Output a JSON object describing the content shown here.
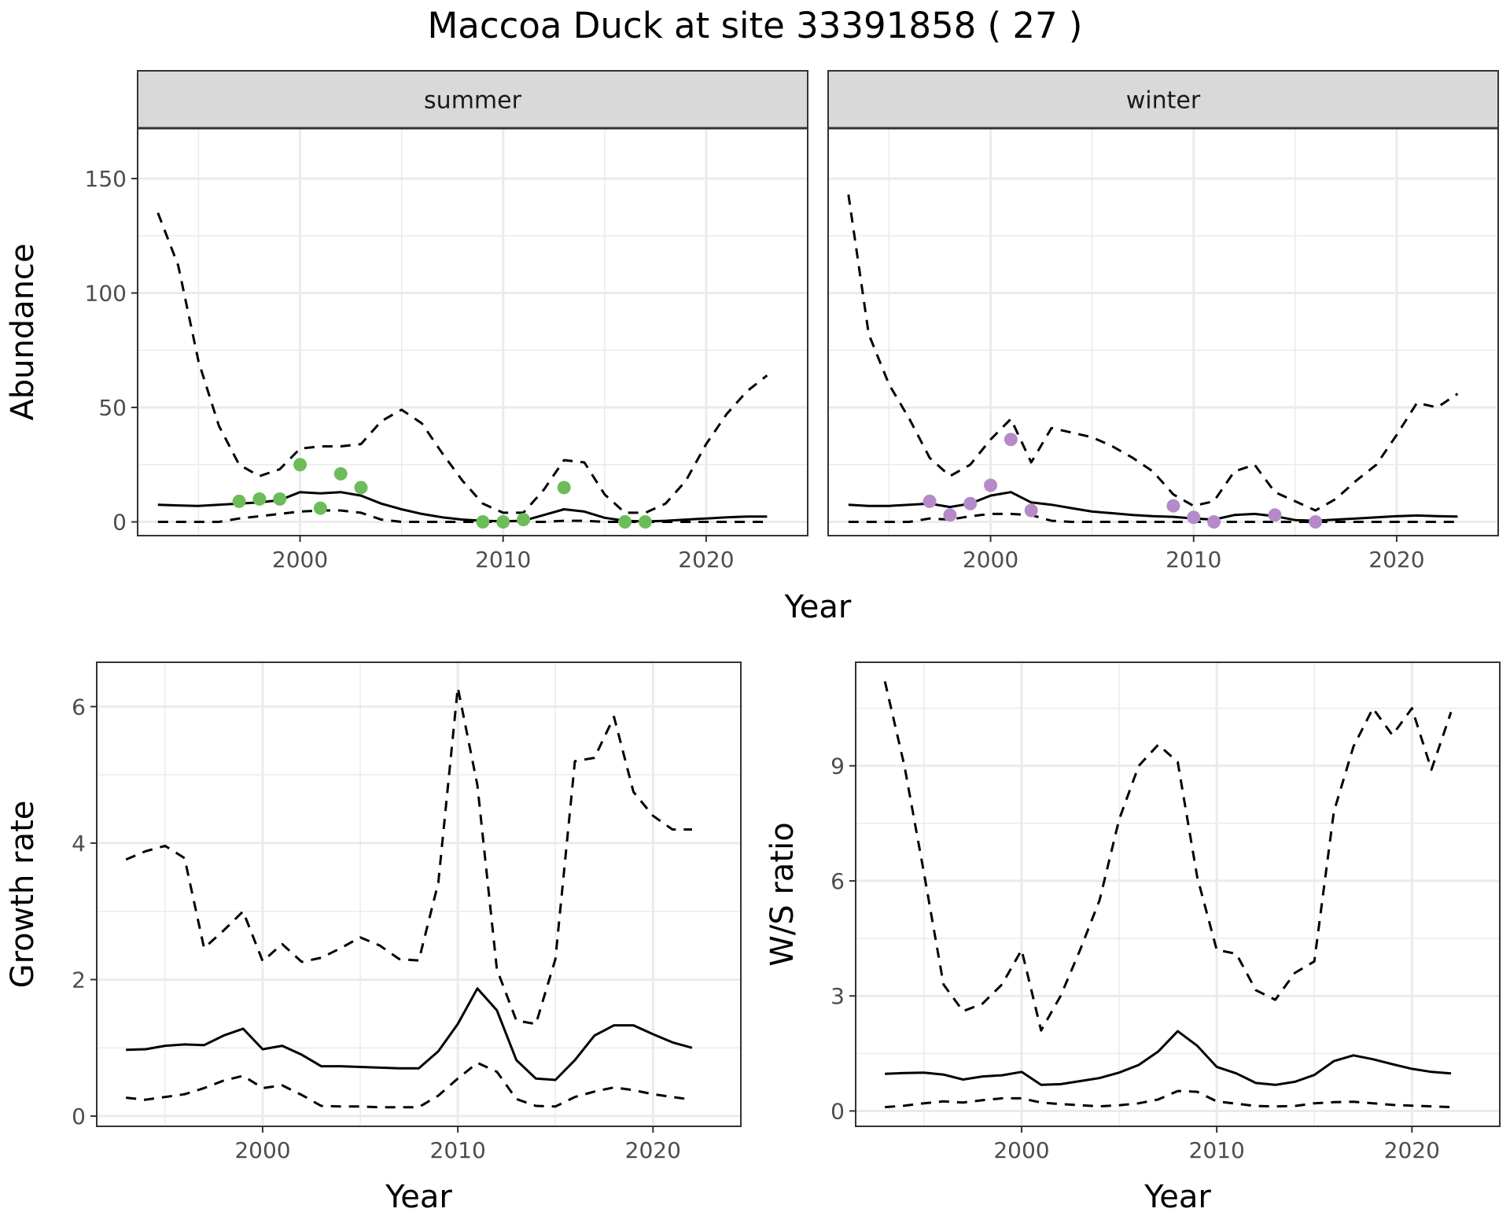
{
  "title": "Maccoa Duck at site 33391858 ( 27 )",
  "colors": {
    "summer_points": "#6cbd5a",
    "winter_points": "#b48bc8",
    "line": "#000000",
    "grid": "#ebebeb",
    "strip": "#d9d9d9"
  },
  "chart_data": [
    {
      "id": "summer",
      "type": "line",
      "facet_label": "summer",
      "xlabel": "Year",
      "ylabel": "Abundance",
      "xlim": [
        1992,
        2025
      ],
      "ylim": [
        -6,
        172
      ],
      "x_ticks": [
        2000,
        2010,
        2020
      ],
      "y_ticks": [
        0,
        50,
        100,
        150
      ],
      "grid": true,
      "series": [
        {
          "style": "solid",
          "x": [
            1993,
            1994,
            1995,
            1996,
            1997,
            1998,
            1999,
            2000,
            2001,
            2002,
            2003,
            2004,
            2005,
            2006,
            2007,
            2008,
            2009,
            2010,
            2011,
            2012,
            2013,
            2014,
            2015,
            2016,
            2017,
            2018,
            2019,
            2020,
            2021,
            2022,
            2023
          ],
          "y": [
            7.5,
            7.2,
            7,
            7.5,
            8,
            8.5,
            9.5,
            13,
            12.5,
            13,
            11.5,
            8,
            5.5,
            3.5,
            2,
            1,
            0.5,
            0.3,
            0.5,
            3,
            5.5,
            4.5,
            1.8,
            0.5,
            0.2,
            0.5,
            1,
            1.5,
            2,
            2.3,
            2.3
          ]
        },
        {
          "style": "dashed",
          "x": [
            1993,
            1994,
            1995,
            1996,
            1997,
            1998,
            1999,
            2000,
            2001,
            2002,
            2003,
            2004,
            2005,
            2006,
            2007,
            2008,
            2009,
            2010,
            2011,
            2012,
            2013,
            2014,
            2015,
            2016,
            2017,
            2018,
            2019,
            2020,
            2021,
            2022,
            2023
          ],
          "y": [
            135,
            112,
            70,
            42,
            25,
            20,
            23,
            32,
            33,
            33,
            34,
            44,
            49,
            43,
            30,
            18,
            8,
            4,
            4,
            14,
            27,
            26,
            12,
            4,
            4,
            8,
            18,
            34,
            47,
            57,
            64
          ]
        },
        {
          "style": "dashed",
          "x": [
            1993,
            1994,
            1995,
            1996,
            1997,
            1998,
            1999,
            2000,
            2001,
            2002,
            2003,
            2004,
            2005,
            2006,
            2007,
            2008,
            2009,
            2010,
            2011,
            2012,
            2013,
            2014,
            2015,
            2016,
            2017,
            2018,
            2019,
            2020,
            2021,
            2022,
            2023
          ],
          "y": [
            0,
            0,
            0,
            0,
            1.5,
            2.5,
            3.5,
            4.5,
            5,
            5,
            4,
            1,
            0,
            0,
            0,
            0,
            0,
            0,
            0,
            0,
            0.5,
            0.5,
            0,
            0,
            0,
            0,
            0,
            0,
            0,
            0,
            0
          ]
        },
        {
          "style": "points",
          "x": [
            1997,
            1998,
            1999,
            2000,
            2001,
            2002,
            2003,
            2009,
            2010,
            2011,
            2013,
            2016,
            2017
          ],
          "y": [
            9,
            10,
            10,
            25,
            6,
            21,
            15,
            0,
            0,
            1,
            15,
            0,
            0
          ]
        }
      ]
    },
    {
      "id": "winter",
      "type": "line",
      "facet_label": "winter",
      "xlabel": "Year",
      "ylabel": "",
      "xlim": [
        1992,
        2025
      ],
      "ylim": [
        -6,
        172
      ],
      "x_ticks": [
        2000,
        2010,
        2020
      ],
      "y_ticks": [
        0,
        50,
        100,
        150
      ],
      "grid": true,
      "series": [
        {
          "style": "solid",
          "x": [
            1993,
            1994,
            1995,
            1996,
            1997,
            1998,
            1999,
            2000,
            2001,
            2002,
            2003,
            2004,
            2005,
            2006,
            2007,
            2008,
            2009,
            2010,
            2011,
            2012,
            2013,
            2014,
            2015,
            2016,
            2017,
            2018,
            2019,
            2020,
            2021,
            2022,
            2023
          ],
          "y": [
            7.5,
            7,
            7,
            7.5,
            8,
            6.5,
            8,
            11.5,
            13,
            8.5,
            7.5,
            6,
            4.5,
            3.8,
            3,
            2.5,
            2.2,
            1.5,
            1,
            3,
            3.5,
            2.5,
            0.8,
            0.5,
            1,
            1.5,
            2,
            2.5,
            2.8,
            2.5,
            2.3
          ]
        },
        {
          "style": "dashed",
          "x": [
            1993,
            1994,
            1995,
            1996,
            1997,
            1998,
            1999,
            2000,
            2001,
            2002,
            2003,
            2004,
            2005,
            2006,
            2007,
            2008,
            2009,
            2010,
            2011,
            2012,
            2013,
            2014,
            2015,
            2016,
            2017,
            2018,
            2019,
            2020,
            2021,
            2022,
            2023
          ],
          "y": [
            143,
            82,
            60,
            45,
            28,
            20,
            25,
            36,
            45,
            26,
            41,
            39,
            37,
            33,
            28,
            22,
            12,
            7,
            9,
            22,
            25,
            13,
            9,
            5,
            10,
            18,
            25,
            38,
            52,
            50,
            56
          ]
        },
        {
          "style": "dashed",
          "x": [
            1993,
            1994,
            1995,
            1996,
            1997,
            1998,
            1999,
            2000,
            2001,
            2002,
            2003,
            2004,
            2005,
            2006,
            2007,
            2008,
            2009,
            2010,
            2011,
            2012,
            2013,
            2014,
            2015,
            2016,
            2017,
            2018,
            2019,
            2020,
            2021,
            2022,
            2023
          ],
          "y": [
            0,
            0,
            0,
            0,
            1.5,
            1,
            2.5,
            3.5,
            3.5,
            3,
            0.5,
            0,
            0,
            0,
            0,
            0,
            0,
            0,
            0,
            0,
            0,
            0,
            0,
            0,
            0,
            0,
            0,
            0,
            0,
            0,
            0
          ]
        },
        {
          "style": "points",
          "x": [
            1997,
            1998,
            1999,
            2000,
            2001,
            2002,
            2009,
            2010,
            2011,
            2014,
            2016
          ],
          "y": [
            9,
            3,
            8,
            16,
            36,
            5,
            7,
            2,
            0,
            3,
            0
          ]
        }
      ]
    },
    {
      "id": "growth",
      "type": "line",
      "facet_label": "",
      "xlabel": "Year",
      "ylabel": "Growth rate",
      "xlim": [
        1991.5,
        2024.5
      ],
      "ylim": [
        -0.15,
        6.65
      ],
      "x_ticks": [
        2000,
        2010,
        2020
      ],
      "y_ticks": [
        0,
        2,
        4,
        6
      ],
      "grid": true,
      "series": [
        {
          "style": "solid",
          "x": [
            1993,
            1994,
            1995,
            1996,
            1997,
            1998,
            1999,
            2000,
            2001,
            2002,
            2003,
            2004,
            2005,
            2006,
            2007,
            2008,
            2009,
            2010,
            2011,
            2012,
            2013,
            2014,
            2015,
            2016,
            2017,
            2018,
            2019,
            2020,
            2021,
            2022
          ],
          "y": [
            0.97,
            0.98,
            1.03,
            1.05,
            1.04,
            1.18,
            1.28,
            0.98,
            1.03,
            0.9,
            0.73,
            0.73,
            0.72,
            0.71,
            0.7,
            0.7,
            0.95,
            1.35,
            1.87,
            1.55,
            0.82,
            0.55,
            0.53,
            0.82,
            1.18,
            1.33,
            1.33,
            1.2,
            1.08,
            1.0
          ]
        },
        {
          "style": "dashed",
          "x": [
            1993,
            1994,
            1995,
            1996,
            1997,
            1998,
            1999,
            2000,
            2001,
            2002,
            2003,
            2004,
            2005,
            2006,
            2007,
            2008,
            2009,
            2010,
            2011,
            2012,
            2013,
            2014,
            2015,
            2016,
            2017,
            2018,
            2019,
            2020,
            2021,
            2022
          ],
          "y": [
            3.76,
            3.88,
            3.96,
            3.78,
            2.46,
            2.72,
            3.0,
            2.27,
            2.52,
            2.26,
            2.32,
            2.46,
            2.62,
            2.5,
            2.3,
            2.28,
            3.42,
            6.28,
            4.85,
            2.15,
            1.4,
            1.35,
            2.3,
            5.2,
            5.25,
            5.85,
            4.75,
            4.4,
            4.2,
            4.2
          ]
        },
        {
          "style": "dashed",
          "x": [
            1993,
            1994,
            1995,
            1996,
            1997,
            1998,
            1999,
            2000,
            2001,
            2002,
            2003,
            2004,
            2005,
            2006,
            2007,
            2008,
            2009,
            2010,
            2011,
            2012,
            2013,
            2014,
            2015,
            2016,
            2017,
            2018,
            2019,
            2020,
            2021,
            2022
          ],
          "y": [
            0.27,
            0.24,
            0.28,
            0.32,
            0.41,
            0.52,
            0.59,
            0.41,
            0.45,
            0.31,
            0.15,
            0.14,
            0.14,
            0.13,
            0.13,
            0.13,
            0.3,
            0.55,
            0.78,
            0.65,
            0.25,
            0.15,
            0.14,
            0.28,
            0.36,
            0.42,
            0.38,
            0.32,
            0.28,
            0.24
          ]
        }
      ]
    },
    {
      "id": "ratio",
      "type": "line",
      "facet_label": "",
      "xlabel": "Year",
      "ylabel": "W/S ratio",
      "xlim": [
        1991.5,
        2024.5
      ],
      "ylim": [
        -0.4,
        11.7
      ],
      "x_ticks": [
        2000,
        2010,
        2020
      ],
      "y_ticks": [
        0,
        3,
        6,
        9
      ],
      "grid": true,
      "series": [
        {
          "style": "solid",
          "x": [
            1993,
            1994,
            1995,
            1996,
            1997,
            1998,
            1999,
            2000,
            2001,
            2002,
            2003,
            2004,
            2005,
            2006,
            2007,
            2008,
            2009,
            2010,
            2011,
            2012,
            2013,
            2014,
            2015,
            2016,
            2017,
            2018,
            2019,
            2020,
            2021,
            2022
          ],
          "y": [
            0.97,
            0.99,
            1.0,
            0.95,
            0.82,
            0.9,
            0.93,
            1.02,
            0.68,
            0.7,
            0.78,
            0.86,
            1.0,
            1.2,
            1.55,
            2.08,
            1.7,
            1.15,
            0.98,
            0.73,
            0.68,
            0.76,
            0.94,
            1.3,
            1.45,
            1.35,
            1.22,
            1.1,
            1.02,
            0.98
          ]
        },
        {
          "style": "dashed",
          "x": [
            1993,
            1994,
            1995,
            1996,
            1997,
            1998,
            1999,
            2000,
            2001,
            2002,
            2003,
            2004,
            2005,
            2006,
            2007,
            2008,
            2009,
            2010,
            2011,
            2012,
            2013,
            2014,
            2015,
            2016,
            2017,
            2018,
            2019,
            2020,
            2021,
            2022
          ],
          "y": [
            11.2,
            9.0,
            6.2,
            3.3,
            2.6,
            2.8,
            3.3,
            4.2,
            2.1,
            3.0,
            4.2,
            5.5,
            7.6,
            9.0,
            9.55,
            9.1,
            6.1,
            4.2,
            4.1,
            3.15,
            2.9,
            3.6,
            3.9,
            7.8,
            9.5,
            10.5,
            9.8,
            10.5,
            8.9,
            10.4
          ]
        },
        {
          "style": "dashed",
          "x": [
            1993,
            1994,
            1995,
            1996,
            1997,
            1998,
            1999,
            2000,
            2001,
            2002,
            2003,
            2004,
            2005,
            2006,
            2007,
            2008,
            2009,
            2010,
            2011,
            2012,
            2013,
            2014,
            2015,
            2016,
            2017,
            2018,
            2019,
            2020,
            2021,
            2022
          ],
          "y": [
            0.1,
            0.14,
            0.2,
            0.25,
            0.22,
            0.28,
            0.33,
            0.33,
            0.22,
            0.18,
            0.15,
            0.12,
            0.15,
            0.2,
            0.3,
            0.52,
            0.5,
            0.25,
            0.19,
            0.13,
            0.12,
            0.13,
            0.2,
            0.23,
            0.24,
            0.2,
            0.16,
            0.14,
            0.12,
            0.1
          ]
        }
      ]
    }
  ],
  "shared_xlabel_top": "Year"
}
